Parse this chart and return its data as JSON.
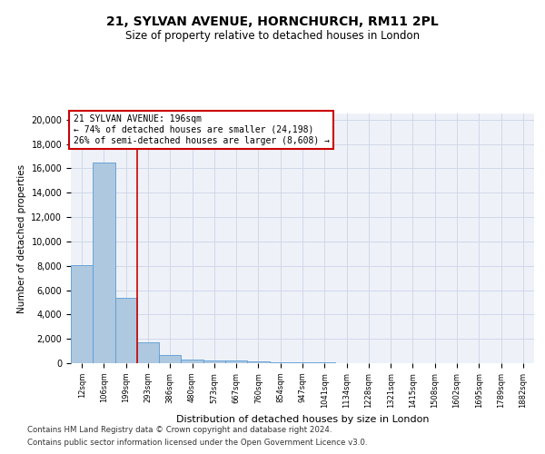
{
  "title1": "21, SYLVAN AVENUE, HORNCHURCH, RM11 2PL",
  "title2": "Size of property relative to detached houses in London",
  "xlabel": "Distribution of detached houses by size in London",
  "ylabel": "Number of detached properties",
  "bar_labels": [
    "12sqm",
    "106sqm",
    "199sqm",
    "293sqm",
    "386sqm",
    "480sqm",
    "573sqm",
    "667sqm",
    "760sqm",
    "854sqm",
    "947sqm",
    "1041sqm",
    "1134sqm",
    "1228sqm",
    "1321sqm",
    "1415sqm",
    "1508sqm",
    "1602sqm",
    "1695sqm",
    "1789sqm",
    "1882sqm"
  ],
  "bar_heights": [
    8050,
    16500,
    5400,
    1750,
    700,
    320,
    220,
    195,
    150,
    90,
    60,
    40,
    30,
    20,
    15,
    10,
    8,
    6,
    4,
    3,
    2
  ],
  "bar_color": "#aec8e0",
  "bar_edge_color": "#5b9bd5",
  "red_line_index": 2,
  "annotation_line1": "21 SYLVAN AVENUE: 196sqm",
  "annotation_line2": "← 74% of detached houses are smaller (24,198)",
  "annotation_line3": "26% of semi-detached houses are larger (8,608) →",
  "annotation_box_color": "#ffffff",
  "annotation_box_edge": "#cc0000",
  "red_line_color": "#cc0000",
  "ylim": [
    0,
    20500
  ],
  "yticks": [
    0,
    2000,
    4000,
    6000,
    8000,
    10000,
    12000,
    14000,
    16000,
    18000,
    20000
  ],
  "footnote1": "Contains HM Land Registry data © Crown copyright and database right 2024.",
  "footnote2": "Contains public sector information licensed under the Open Government Licence v3.0.",
  "grid_color": "#d0d8e8",
  "bg_color": "#eef2f8"
}
